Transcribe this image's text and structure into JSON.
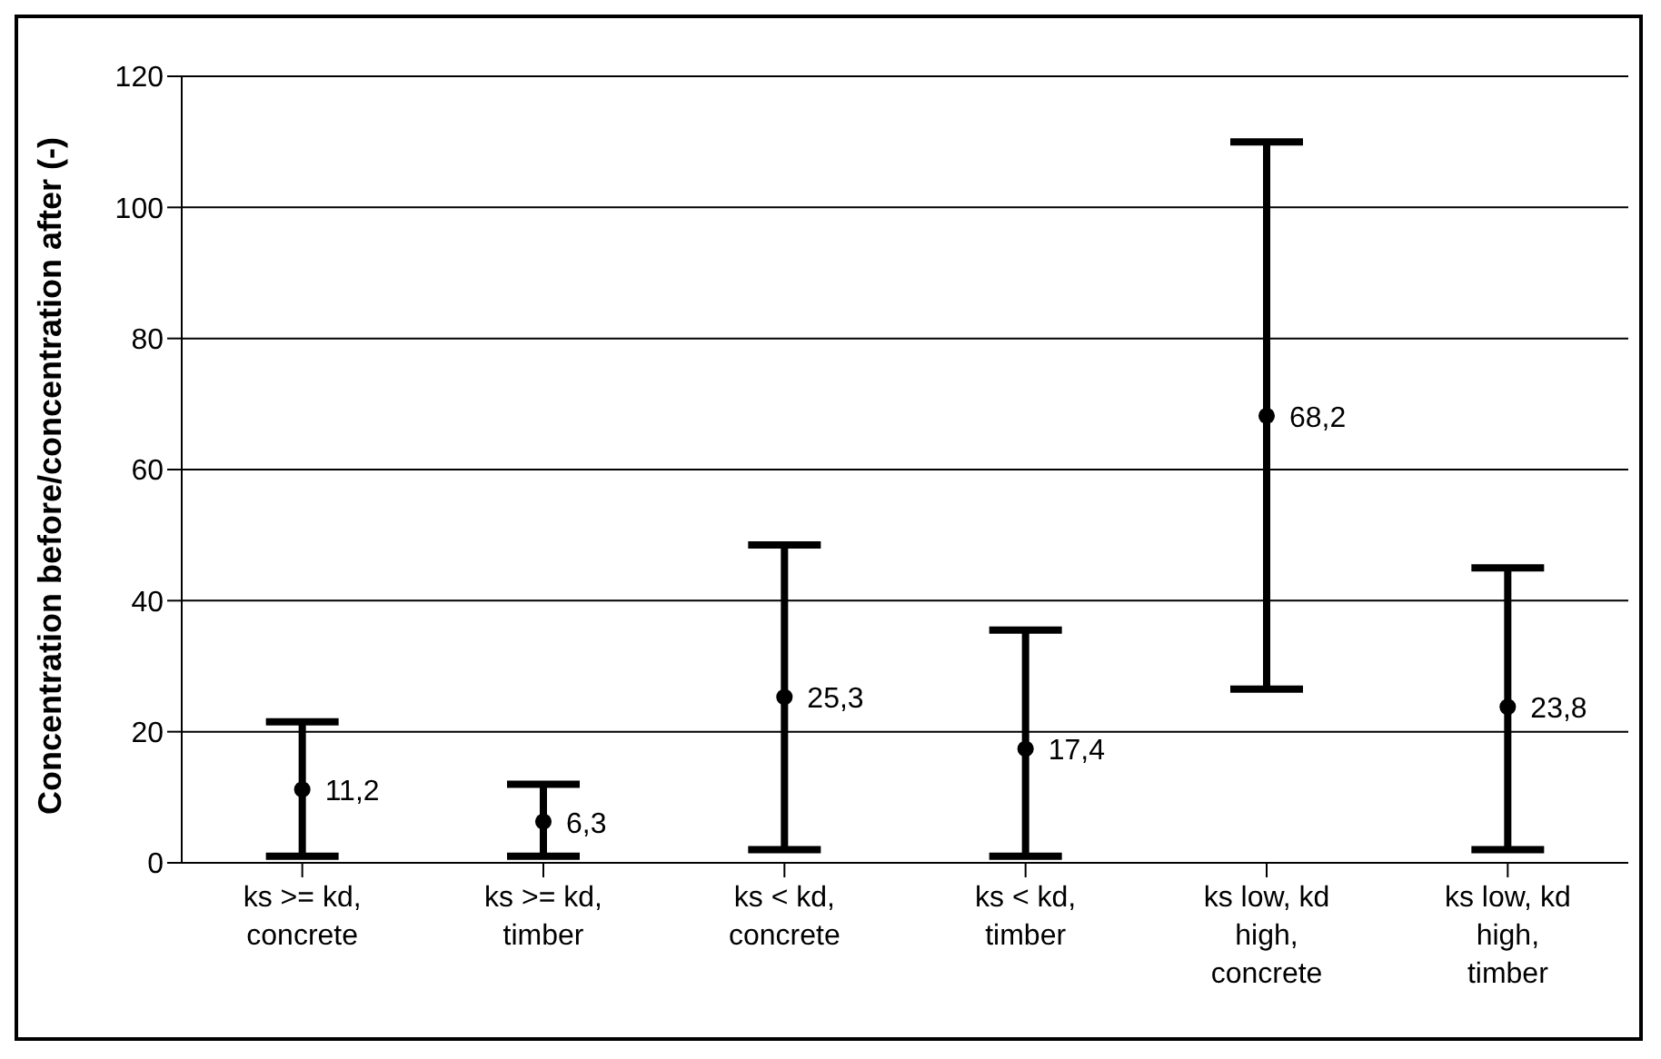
{
  "chart_data": {
    "type": "scatter",
    "ylabel": "Concentration before/concentration after (-)",
    "categories": [
      "ks >= kd, concrete",
      "ks >= kd, timber",
      "ks < kd, concrete",
      "ks < kd, timber",
      "ks low, kd high, concrete",
      "ks low, kd high, timber"
    ],
    "values": [
      11.2,
      6.3,
      25.3,
      17.4,
      68.2,
      23.8
    ],
    "value_labels": [
      "11,2",
      "6,3",
      "25,3",
      "17,4",
      "68,2",
      "23,8"
    ],
    "errors": [
      [
        1,
        21.5
      ],
      [
        1,
        12
      ],
      [
        2,
        48.5
      ],
      [
        1,
        35.5
      ],
      [
        26.5,
        110
      ],
      [
        2,
        45
      ]
    ],
    "color": "#000000",
    "marker": "circle",
    "ylim": [
      0,
      120
    ],
    "yticks": [
      0,
      20,
      40,
      60,
      80,
      100,
      120
    ],
    "grid": "y",
    "legend": false
  }
}
